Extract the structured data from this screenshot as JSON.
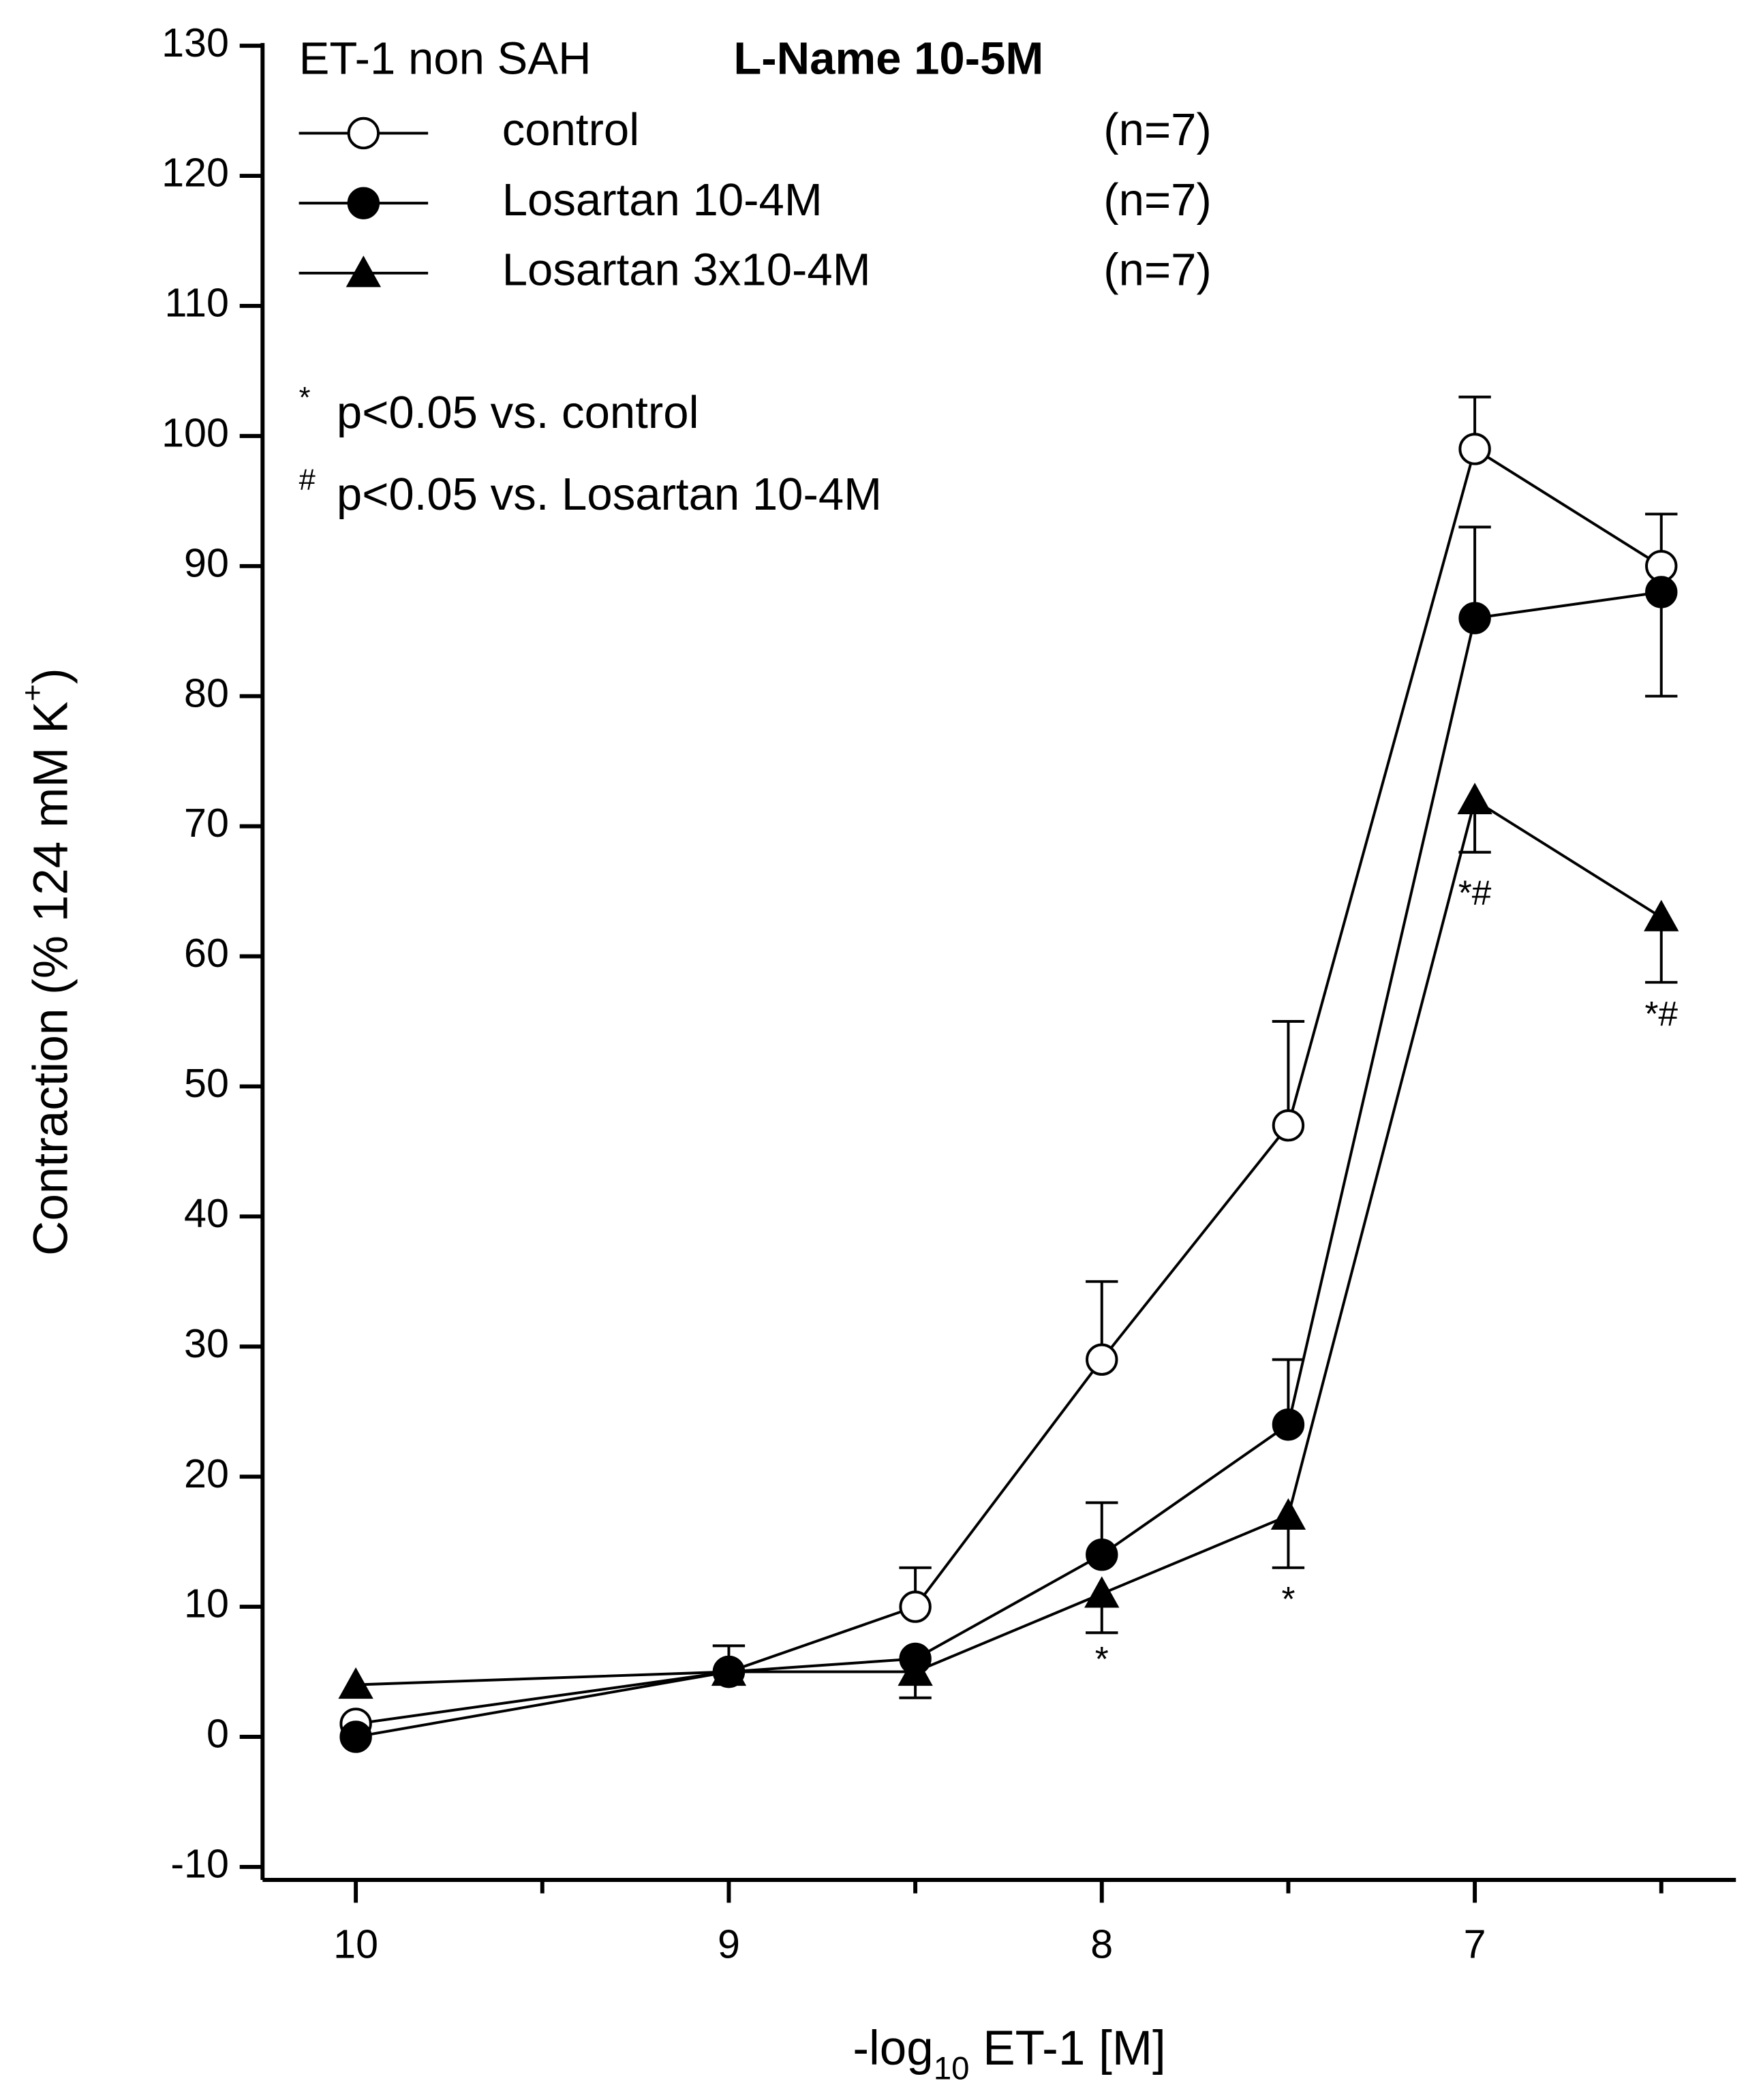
{
  "chart_data": {
    "type": "line",
    "legend_title": "ET-1 non SAH",
    "legend_subtitle": "L-Name 10-5M",
    "x_label": "-log",
    "x_label_sub": "10",
    "x_label_rest": " ET-1 [M]",
    "y_label": "Contraction (% 124 mM K",
    "y_label_sup": "+",
    "y_label_rest": ")",
    "x": [
      10,
      9,
      8.5,
      8,
      7.5,
      7,
      6.5
    ],
    "xlim": [
      10.25,
      6.3
    ],
    "xticks": [
      10,
      9,
      8,
      7
    ],
    "xminor_ticks": [
      9.5,
      8.5,
      7.5,
      6.5
    ],
    "ylim": [
      -11,
      130
    ],
    "yticks": [
      -10,
      0,
      10,
      20,
      30,
      40,
      50,
      60,
      70,
      80,
      90,
      100,
      110,
      120,
      130
    ],
    "series": [
      {
        "name": "control",
        "n_label": "(n=7)",
        "color": "#000000",
        "marker": "circle-open",
        "values": [
          1,
          5,
          10,
          29,
          47,
          99,
          90
        ],
        "errors_up": [
          null,
          2,
          3,
          6,
          8,
          4,
          4
        ],
        "errors_down": [
          null,
          null,
          null,
          null,
          null,
          null,
          null
        ]
      },
      {
        "name": "Losartan 10-4M",
        "n_label": "(n=7)",
        "color": "#000000",
        "marker": "circle-filled",
        "values": [
          0,
          5,
          6,
          14,
          24,
          86,
          88
        ],
        "errors_up": [
          null,
          null,
          null,
          4,
          5,
          7,
          null
        ],
        "errors_down": [
          null,
          null,
          null,
          null,
          null,
          null,
          8
        ]
      },
      {
        "name": "Losartan 3x10-4M",
        "n_label": "(n=7)",
        "color": "#000000",
        "marker": "triangle-filled",
        "values": [
          4,
          5,
          5,
          11,
          17,
          72,
          63
        ],
        "errors_up": [
          null,
          null,
          null,
          null,
          null,
          null,
          null
        ],
        "errors_down": [
          null,
          null,
          2,
          3,
          4,
          4,
          5
        ]
      }
    ],
    "notes": [
      {
        "marker": "*",
        "text": "p<0.05 vs. control"
      },
      {
        "marker": "#",
        "text": "p<0.05 vs. Losartan 10-4M"
      }
    ],
    "annotations": [
      {
        "text": "*",
        "x": 8,
        "y": 5.8
      },
      {
        "text": "*",
        "x": 7.5,
        "y": 10.4
      },
      {
        "text": "*#",
        "x": 7,
        "y": 64.7
      },
      {
        "text": "*#",
        "x": 6.5,
        "y": 55.4
      }
    ]
  }
}
